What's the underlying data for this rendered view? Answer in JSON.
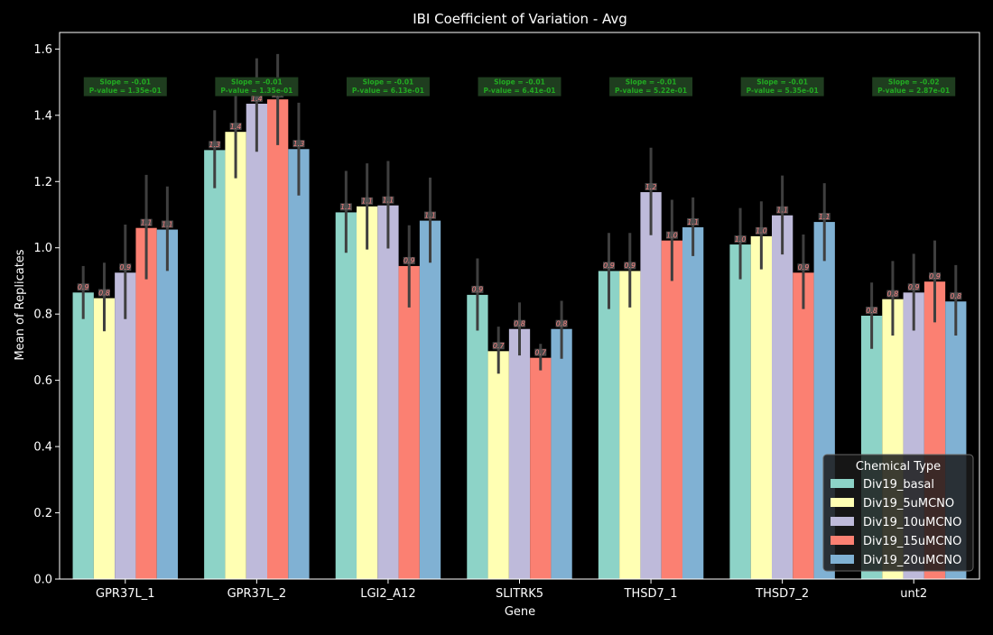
{
  "chart_data": {
    "type": "bar",
    "title": "IBI Coefficient of Variation - Avg",
    "xlabel": "Gene",
    "ylabel": "Mean of Replicates",
    "ylim": [
      0,
      1.65
    ],
    "yticks": [
      0.0,
      0.2,
      0.4,
      0.6,
      0.8,
      1.0,
      1.2,
      1.4,
      1.6
    ],
    "categories": [
      "GPR37L_1",
      "GPR37L_2",
      "LGI2_A12",
      "SLITRK5",
      "THSD7_1",
      "THSD7_2",
      "unt2"
    ],
    "series": [
      {
        "name": "Div19_basal",
        "color": "#8dd3c7",
        "values": [
          0.865,
          1.295,
          1.107,
          0.858,
          0.93,
          1.01,
          0.795
        ],
        "err_low": [
          0.785,
          1.18,
          0.985,
          0.75,
          0.815,
          0.905,
          0.695
        ],
        "err_high": [
          0.945,
          1.415,
          1.232,
          0.968,
          1.045,
          1.12,
          0.895
        ],
        "labels": [
          "0.9",
          "1.3",
          "1.1",
          "0.9",
          "0.9",
          "1.0",
          "0.8"
        ]
      },
      {
        "name": "Div19_5uMCNO",
        "color": "#ffffb3",
        "values": [
          0.848,
          1.35,
          1.125,
          0.688,
          0.93,
          1.035,
          0.845
        ],
        "err_low": [
          0.748,
          1.21,
          0.995,
          0.62,
          0.82,
          0.935,
          0.735
        ],
        "err_high": [
          0.955,
          1.495,
          1.255,
          0.762,
          1.045,
          1.14,
          0.96
        ],
        "labels": [
          "0.8",
          "1.4",
          "1.1",
          "0.7",
          "0.9",
          "1.0",
          "0.8"
        ]
      },
      {
        "name": "Div19_10uMCNO",
        "color": "#bebada",
        "values": [
          0.925,
          1.435,
          1.128,
          0.755,
          1.168,
          1.098,
          0.865
        ],
        "err_low": [
          0.785,
          1.29,
          0.998,
          0.675,
          1.038,
          0.98,
          0.75
        ],
        "err_high": [
          1.07,
          1.572,
          1.262,
          0.835,
          1.302,
          1.218,
          0.982
        ],
        "labels": [
          "0.9",
          "1.4",
          "1.1",
          "0.8",
          "1.2",
          "1.1",
          "0.9"
        ]
      },
      {
        "name": "Div19_15uMCNO",
        "color": "#fb8072",
        "values": [
          1.06,
          1.448,
          0.945,
          0.668,
          1.022,
          0.925,
          0.898
        ],
        "err_low": [
          0.905,
          1.31,
          0.82,
          0.63,
          0.9,
          0.815,
          0.775
        ],
        "err_high": [
          1.22,
          1.585,
          1.068,
          0.71,
          1.145,
          1.04,
          1.022
        ],
        "labels": [
          "1.1",
          "1.4",
          "0.9",
          "0.7",
          "1.0",
          "0.9",
          "0.9"
        ]
      },
      {
        "name": "Div19_20uMCNO",
        "color": "#80b1d3",
        "values": [
          1.055,
          1.298,
          1.082,
          0.755,
          1.062,
          1.078,
          0.838
        ],
        "err_low": [
          0.93,
          1.158,
          0.955,
          0.665,
          0.975,
          0.96,
          0.735
        ],
        "err_high": [
          1.185,
          1.438,
          1.212,
          0.84,
          1.152,
          1.195,
          0.948
        ],
        "labels": [
          "1.1",
          "1.3",
          "1.1",
          "0.8",
          "1.1",
          "1.1",
          "0.8"
        ]
      }
    ],
    "annotations": [
      {
        "line1": "Slope = -0.01",
        "line2": "P-value = 1.35e-01"
      },
      {
        "line1": "Slope = -0.01",
        "line2": "P-value = 1.35e-01"
      },
      {
        "line1": "Slope = -0.01",
        "line2": "P-value = 6.13e-01"
      },
      {
        "line1": "Slope = -0.01",
        "line2": "P-value = 6.41e-01"
      },
      {
        "line1": "Slope = -0.01",
        "line2": "P-value = 5.22e-01"
      },
      {
        "line1": "Slope = -0.01",
        "line2": "P-value = 5.35e-01"
      },
      {
        "line1": "Slope = -0.02",
        "line2": "P-value = 2.87e-01"
      }
    ],
    "annotation_color": "#22aa22",
    "annotation_bg": "#1f3d1f",
    "bar_label_color": "#f08080",
    "legend": {
      "title": "Chemical Type",
      "placement": "lower-right"
    },
    "grid": false
  }
}
